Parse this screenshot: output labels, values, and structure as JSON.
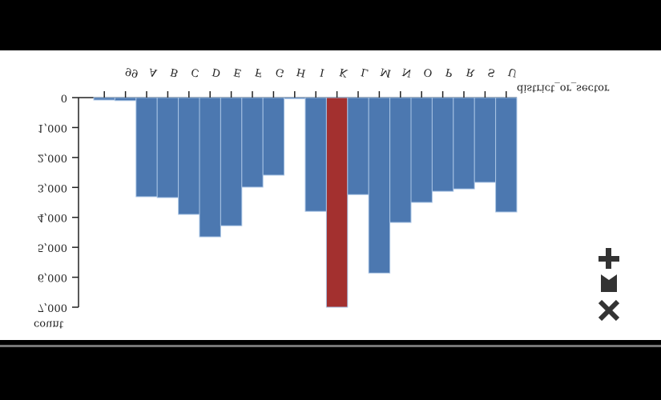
{
  "chart_data": {
    "type": "bar",
    "x_label": "district_or_sector",
    "y_label": "count",
    "categories": [
      null,
      "99",
      "A",
      "B",
      "C",
      "D",
      "E",
      "F",
      "G",
      "H",
      "I",
      "K",
      "L",
      "M",
      "N",
      "O",
      "P",
      "R",
      "S",
      "U"
    ],
    "values": [
      80,
      100,
      3310,
      3340,
      3900,
      4650,
      4280,
      2990,
      2590,
      40,
      3800,
      7000,
      3240,
      5860,
      4170,
      3500,
      3130,
      3050,
      2830,
      3820
    ],
    "colors": [
      "#4c78b0",
      "#4c78b0",
      "#4c78b0",
      "#4c78b0",
      "#4c78b0",
      "#4c78b0",
      "#4c78b0",
      "#4c78b0",
      "#4c78b0",
      "#4c78b0",
      "#4c78b0",
      "#a3302f",
      "#4c78b0",
      "#4c78b0",
      "#4c78b0",
      "#4c78b0",
      "#4c78b0",
      "#4c78b0",
      "#4c78b0",
      "#4c78b0"
    ],
    "ylim": [
      0,
      7000
    ],
    "yticks": [
      0,
      {
        "value": 1000,
        "label": "1,000"
      },
      {
        "value": 2000,
        "label": "2,000"
      },
      {
        "value": 3000,
        "label": "3,000"
      },
      {
        "value": 4000,
        "label": "4,000"
      },
      {
        "value": 5000,
        "label": "5,000"
      },
      {
        "value": 6000,
        "label": "6,000"
      },
      {
        "value": 7000,
        "label": "7,000"
      }
    ]
  }
}
